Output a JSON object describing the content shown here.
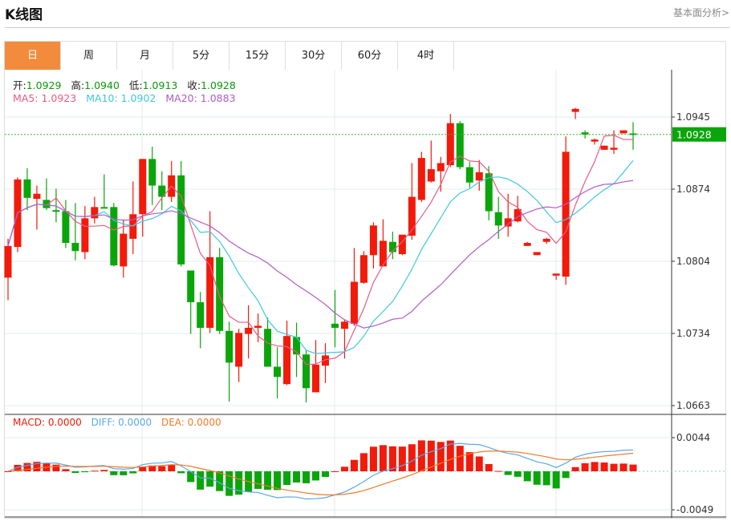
{
  "header": {
    "title": "K线图",
    "link": "基本面分析>"
  },
  "tabs": [
    {
      "label": "日",
      "active": true
    },
    {
      "label": "周"
    },
    {
      "label": "月"
    },
    {
      "label": "5分"
    },
    {
      "label": "15分"
    },
    {
      "label": "30分"
    },
    {
      "label": "60分"
    },
    {
      "label": "4时"
    }
  ],
  "ohlc_info": {
    "open_label": "开:",
    "open": "1.0929",
    "high_label": "高:",
    "high": "1.0940",
    "low_label": "低:",
    "low": "1.0913",
    "close_label": "收:",
    "close": "1.0928"
  },
  "ma_info": {
    "ma5": "MA5: 1.0923",
    "ma10": "MA10: 1.0902",
    "ma20": "MA20: 1.0883"
  },
  "macd_info": {
    "macd": "MACD: 0.0000",
    "diff": "DIFF: 0.0000",
    "dea": "DEA: 0.0000"
  },
  "colors": {
    "up": "#f21a0a",
    "down": "#0aa50a",
    "ma5": "#ea5a85",
    "ma10": "#3fc8dc",
    "ma20": "#b05cc8",
    "diff": "#5aa8e8",
    "dea": "#f07a28",
    "tab_active": "#f28c3c"
  },
  "chart_data": {
    "type": "candlestick",
    "price_ticks": [
      "1.0945",
      "1.0874",
      "1.0804",
      "1.0734",
      "1.0663"
    ],
    "last_price": "1.0928",
    "macd_ticks": [
      "0.0044",
      "-0.0049"
    ],
    "candles": [
      [
        1.0788,
        1.0826,
        1.0766,
        1.0819
      ],
      [
        1.0818,
        1.0886,
        1.0813,
        1.0884
      ],
      [
        1.0884,
        1.0895,
        1.0854,
        1.0866
      ],
      [
        1.0865,
        1.0878,
        1.0835,
        1.087
      ],
      [
        1.0864,
        1.0885,
        1.0854,
        1.0856
      ],
      [
        1.0854,
        1.0875,
        1.0842,
        1.0853
      ],
      [
        1.0853,
        1.0864,
        1.0817,
        1.0822
      ],
      [
        1.0822,
        1.0861,
        1.0805,
        1.0814
      ],
      [
        1.0813,
        1.0858,
        1.0806,
        1.0846
      ],
      [
        1.0846,
        1.0867,
        1.0841,
        1.0857
      ],
      [
        1.0857,
        1.0889,
        1.0856,
        1.0856
      ],
      [
        1.0857,
        1.0861,
        1.0799,
        1.08
      ],
      [
        1.0799,
        1.0845,
        1.0788,
        1.0831
      ],
      [
        1.0826,
        1.0882,
        1.0811,
        1.085
      ],
      [
        1.085,
        1.0904,
        1.0828,
        1.0904
      ],
      [
        1.0904,
        1.0916,
        1.0859,
        1.0878
      ],
      [
        1.0878,
        1.0892,
        1.0854,
        1.0867
      ],
      [
        1.0867,
        1.0902,
        1.0862,
        1.0888
      ],
      [
        1.0888,
        1.0902,
        1.0799,
        1.0801
      ],
      [
        1.0795,
        1.0795,
        1.0733,
        1.0764
      ],
      [
        1.0764,
        1.0774,
        1.0719,
        1.0739
      ],
      [
        1.0739,
        1.0853,
        1.0734,
        1.0808
      ],
      [
        1.0808,
        1.0817,
        1.0733,
        1.0736
      ],
      [
        1.0736,
        1.0745,
        1.0667,
        1.0705
      ],
      [
        1.0701,
        1.0738,
        1.0686,
        1.0734
      ],
      [
        1.0733,
        1.0761,
        1.0709,
        1.0739
      ],
      [
        1.0739,
        1.0753,
        1.0725,
        1.0741
      ],
      [
        1.0738,
        1.0749,
        1.0701,
        1.0701
      ],
      [
        1.0701,
        1.072,
        1.067,
        1.0691
      ],
      [
        1.0684,
        1.0746,
        1.0683,
        1.0731
      ],
      [
        1.073,
        1.0744,
        1.0691,
        1.0713
      ],
      [
        1.0713,
        1.0717,
        1.0666,
        1.068
      ],
      [
        1.0676,
        1.0727,
        1.0676,
        1.0703
      ],
      [
        1.0702,
        1.0724,
        1.0685,
        1.0712
      ],
      [
        1.0743,
        1.0776,
        1.072,
        1.0739
      ],
      [
        1.0738,
        1.0747,
        1.0709,
        1.0745
      ],
      [
        1.0743,
        1.0817,
        1.0741,
        1.0784
      ],
      [
        1.0783,
        1.0814,
        1.0782,
        1.081
      ],
      [
        1.081,
        1.0842,
        1.0797,
        1.0839
      ],
      [
        1.0799,
        1.0845,
        1.0799,
        1.0824
      ],
      [
        1.0823,
        1.0833,
        1.0806,
        1.0813
      ],
      [
        1.0811,
        1.083,
        1.081,
        1.083
      ],
      [
        1.0829,
        1.09,
        1.0825,
        1.0867
      ],
      [
        1.0864,
        1.0911,
        1.0862,
        1.0905
      ],
      [
        1.0882,
        1.0922,
        1.0881,
        1.0894
      ],
      [
        1.0892,
        1.0906,
        1.0872,
        1.09
      ],
      [
        1.0898,
        1.0948,
        1.0896,
        1.0939
      ],
      [
        1.0939,
        1.0941,
        1.0894,
        1.0896
      ],
      [
        1.0896,
        1.0901,
        1.0876,
        1.0881
      ],
      [
        1.0883,
        1.0903,
        1.0873,
        1.0891
      ],
      [
        1.089,
        1.0897,
        1.0844,
        1.0853
      ],
      [
        1.0852,
        1.0867,
        1.0826,
        1.0839
      ],
      [
        1.0838,
        1.087,
        1.0828,
        1.0846
      ],
      [
        1.0843,
        1.0868,
        1.0842,
        1.0855
      ],
      [
        1.0819,
        1.0823,
        1.0819,
        1.0822
      ],
      [
        1.081,
        1.0813,
        1.081,
        1.0813
      ],
      [
        1.0823,
        1.0827,
        1.0821,
        1.0826
      ],
      [
        1.079,
        1.0792,
        1.0786,
        1.0792
      ],
      [
        1.0789,
        1.0926,
        1.0781,
        1.0911
      ],
      [
        1.095,
        1.0954,
        1.0943,
        1.0953
      ],
      [
        1.093,
        1.0932,
        1.0924,
        1.0928
      ],
      [
        1.0921,
        1.0924,
        1.0918,
        1.0923
      ],
      [
        1.0913,
        1.0917,
        1.0913,
        1.0917
      ],
      [
        1.0913,
        1.0932,
        1.0909,
        1.0915
      ],
      [
        1.0929,
        1.0932,
        1.0929,
        1.0932
      ],
      [
        1.0929,
        1.094,
        1.0913,
        1.0928
      ]
    ]
  }
}
